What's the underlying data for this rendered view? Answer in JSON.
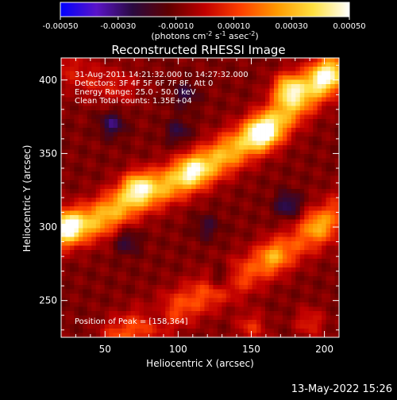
{
  "chart_data": {
    "type": "heatmap",
    "title": "Reconstructed RHESSI Image",
    "xlabel": "Heliocentric X (arcsec)",
    "ylabel": "Heliocentric Y (arcsec)",
    "xlim": [
      20,
      210
    ],
    "ylim": [
      225,
      415
    ],
    "x_ticks": [
      50,
      100,
      150,
      200
    ],
    "y_ticks": [
      250,
      300,
      350,
      400
    ],
    "colorbar": {
      "range": [
        -0.0005,
        0.0005
      ],
      "ticks": [
        "-0.00050",
        "-0.00030",
        "-0.00010",
        "0.00010",
        "0.00030",
        "0.00050"
      ],
      "unit_prefix": "(photons cm",
      "unit_exp1": "-2",
      "unit_mid": " s",
      "unit_exp2": "-1",
      "unit_mid2": " asec",
      "unit_exp3": "-2",
      "unit_suffix": ")",
      "colormap": [
        "#0000ff",
        "#5a14c8",
        "#2a0a40",
        "#600000",
        "#c00000",
        "#ff4000",
        "#ff9a00",
        "#ffe040",
        "#ffffff"
      ]
    },
    "annotations": [
      "31-Aug-2011 14:21:32.000 to 14:27:32.000",
      "Detectors: 3F 4F 5F 6F 7F 8F, Att 0",
      "Energy Range: 25.0 - 50.0 keV",
      "Clean    Total counts: 1.35E+04"
    ],
    "peak_label": "Position of Peak = [158,364]",
    "peak": [
      158,
      364
    ],
    "bright_ridges": [
      {
        "points": [
          [
            20,
            298
          ],
          [
            45,
            305
          ],
          [
            70,
            320
          ],
          [
            100,
            332
          ],
          [
            125,
            345
          ],
          [
            150,
            360
          ],
          [
            165,
            370
          ],
          [
            180,
            385
          ],
          [
            205,
            405
          ]
        ],
        "intensity": 0.0004
      },
      {
        "points": [
          [
            60,
            225
          ],
          [
            90,
            240
          ],
          [
            120,
            255
          ],
          [
            150,
            270
          ],
          [
            175,
            285
          ],
          [
            200,
            300
          ],
          [
            210,
            310
          ]
        ],
        "intensity": 0.00022
      },
      {
        "points": [
          [
            20,
            410
          ],
          [
            40,
            400
          ],
          [
            60,
            395
          ]
        ],
        "intensity": 0.00012
      }
    ],
    "peaks": [
      {
        "x": 158,
        "y": 364,
        "value": 0.0005
      },
      {
        "x": 175,
        "y": 395,
        "value": 0.00045
      },
      {
        "x": 25,
        "y": 300,
        "value": 0.00038
      },
      {
        "x": 72,
        "y": 328,
        "value": 0.00036
      },
      {
        "x": 110,
        "y": 338,
        "value": 0.0003
      },
      {
        "x": 200,
        "y": 402,
        "value": 0.00032
      },
      {
        "x": 195,
        "y": 302,
        "value": 0.00025
      },
      {
        "x": 165,
        "y": 280,
        "value": 0.00022
      },
      {
        "x": 150,
        "y": 232,
        "value": 0.00022
      },
      {
        "x": 190,
        "y": 235,
        "value": 0.0002
      }
    ],
    "negative_pockets": [
      {
        "x": 55,
        "y": 370,
        "value": -0.0002
      },
      {
        "x": 65,
        "y": 290,
        "value": -0.00015
      },
      {
        "x": 130,
        "y": 265,
        "value": -0.00022
      },
      {
        "x": 175,
        "y": 315,
        "value": -0.0002
      },
      {
        "x": 105,
        "y": 390,
        "value": -0.00015
      },
      {
        "x": 85,
        "y": 240,
        "value": -0.00018
      },
      {
        "x": 120,
        "y": 300,
        "value": -0.00012
      },
      {
        "x": 100,
        "y": 365,
        "value": -0.00015
      }
    ]
  },
  "footer": {
    "date": "13-May-2022 15:26"
  }
}
